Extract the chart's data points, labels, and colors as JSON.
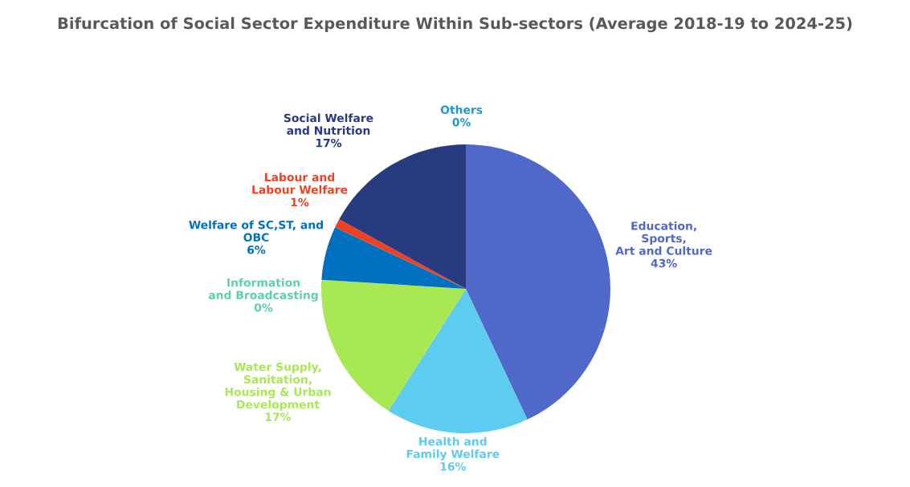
{
  "chart_data": {
    "type": "pie",
    "title": "Bifurcation of Social Sector Expenditure Within Sub-sectors (Average 2018-19 to 2024-25)",
    "categories": [
      "Education,\nSports,\nArt and Culture",
      "Health and\nFamily Welfare",
      "Water Supply,\nSanitation,\nHousing & Urban\nDevelopment",
      "Information\nand Broadcasting",
      "Welfare of SC,ST, and\nOBC",
      "Labour and\nLabour Welfare",
      "Social Welfare\nand Nutrition",
      "Others"
    ],
    "values": [
      43,
      16,
      17,
      0,
      6,
      1,
      17,
      0
    ],
    "value_labels": [
      "43%",
      "16%",
      "17%",
      "0%",
      "6%",
      "1%",
      "17%",
      "0%"
    ],
    "colors": [
      "#5068c8",
      "#5ecbf0",
      "#a8e852",
      "#5ccfb0",
      "#0070c0",
      "#f04020",
      "#283a80",
      "#1a9ad0"
    ],
    "legend": false
  }
}
